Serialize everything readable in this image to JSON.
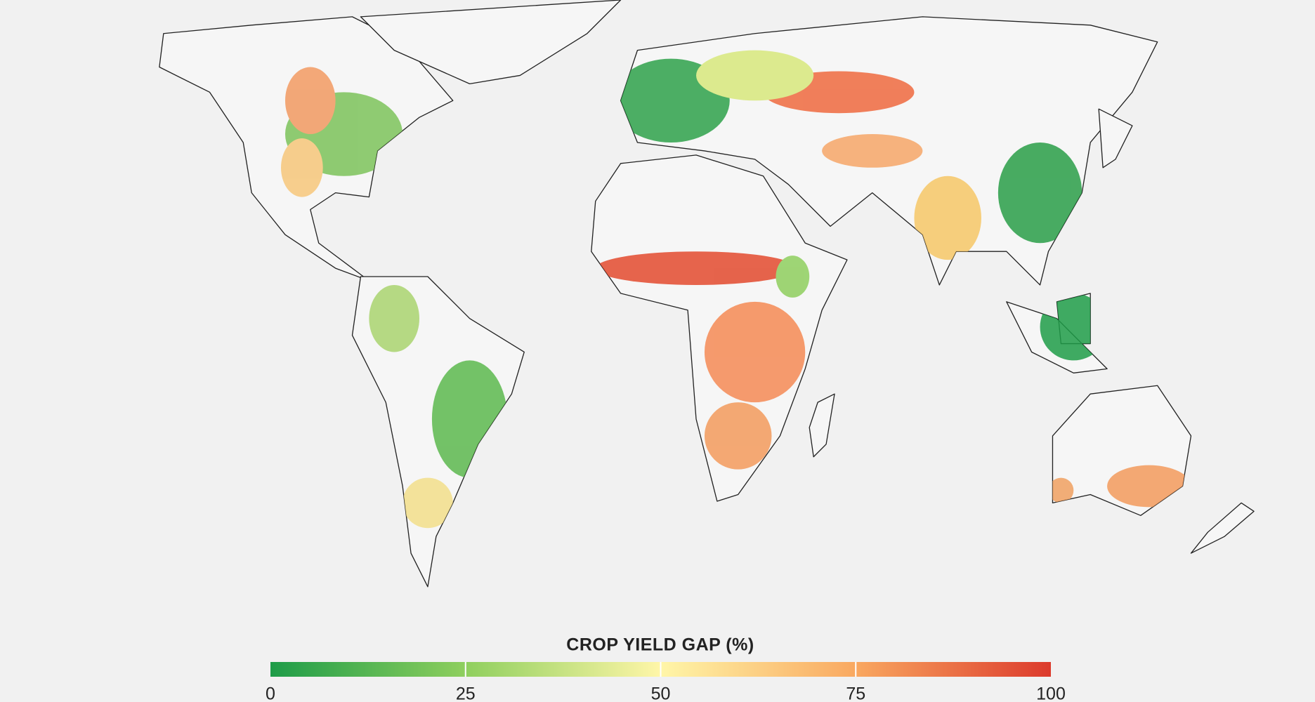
{
  "legend": {
    "title": "CROP YIELD GAP (%)",
    "range": [
      0,
      100
    ],
    "ticks": [
      0,
      25,
      50,
      75,
      100
    ],
    "colors": [
      "#1e9c48",
      "#8fcf5e",
      "#fff6a8",
      "#f9a860",
      "#dc3a2c"
    ]
  }
}
